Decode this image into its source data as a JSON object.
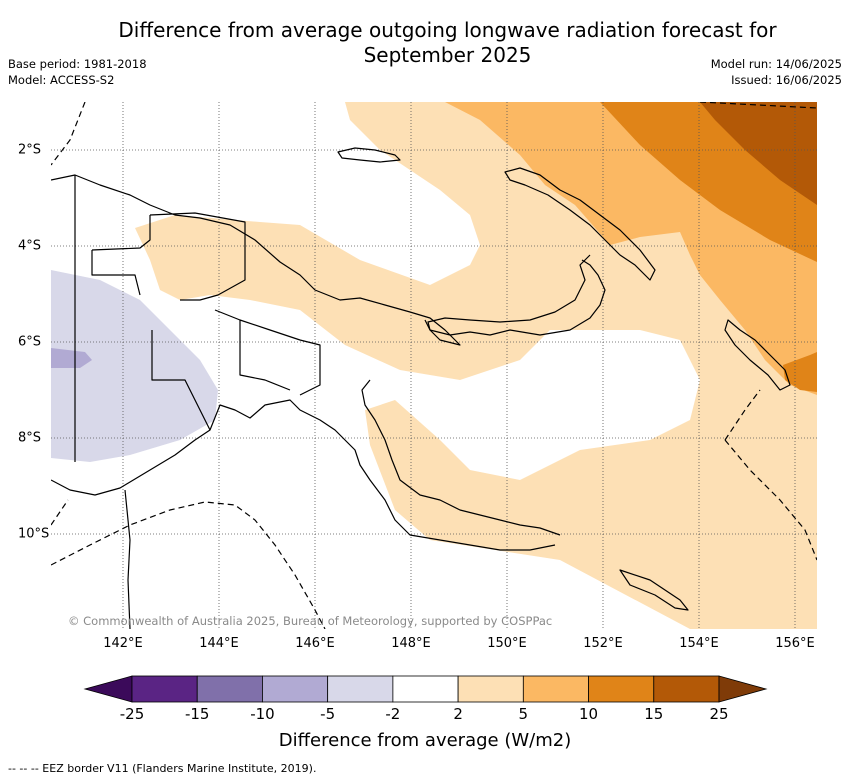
{
  "header": {
    "title_line1": "Difference from average outgoing longwave radiation forecast for",
    "title_line2": "September 2025",
    "base_period": "Base period: 1981-2018",
    "model": "Model: ACCESS-S2",
    "model_run": "Model run: 14/06/2025",
    "issued": "Issued: 16/06/2025"
  },
  "map": {
    "region": "Papua New Guinea",
    "lon_labels": [
      "142°E",
      "144°E",
      "146°E",
      "148°E",
      "150°E",
      "152°E",
      "154°E",
      "156°E"
    ],
    "lat_labels": [
      "2°S",
      "4°S",
      "6°S",
      "8°S",
      "10°S"
    ],
    "copyright": "© Commonwealth of Australia 2025, Bureau of Meteorology, supported by COSPPac",
    "grid": "dotted",
    "coastline_color": "#000000"
  },
  "colorbar": {
    "ticks": [
      "-25",
      "-15",
      "-10",
      "-5",
      "-2",
      "2",
      "5",
      "10",
      "15",
      "25"
    ],
    "colors": [
      "#3b0a5a",
      "#5a2484",
      "#8070aa",
      "#b1aad3",
      "#d8d8e9",
      "#ffffff",
      "#fde0b5",
      "#fbb863",
      "#e08418",
      "#b35907",
      "#7f3b08"
    ],
    "label": "Difference from average (W/m2)"
  },
  "footnote": "--  --  -- EEZ border V11 (Flanders Marine Institute, 2019)."
}
